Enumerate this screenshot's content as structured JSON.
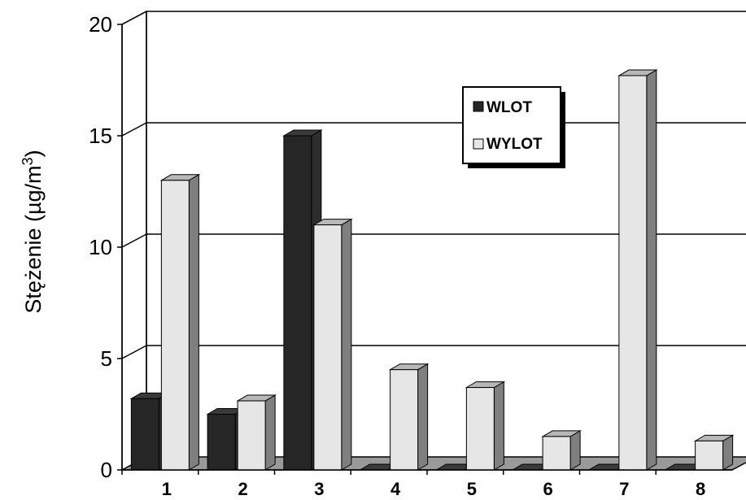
{
  "chart_data": {
    "type": "bar",
    "categories": [
      "1",
      "2",
      "3",
      "4",
      "5",
      "6",
      "7",
      "8"
    ],
    "series": [
      {
        "name": "WLOT",
        "values": [
          3.2,
          2.5,
          15.0,
          0,
          0,
          0,
          0,
          0
        ],
        "color": "#262626"
      },
      {
        "name": "WYLOT",
        "values": [
          13.0,
          3.1,
          11.0,
          4.5,
          3.7,
          1.5,
          17.7,
          1.3
        ],
        "color": "#e6e6e6"
      }
    ],
    "ylabel": "Stężenie (µg/m",
    "ylabel_sup": "3",
    "ylabel_close": ")",
    "ylim": [
      0,
      20
    ],
    "yticks": [
      "0",
      "5",
      "10",
      "15",
      "20"
    ],
    "grid": true,
    "legend_position": "top-right",
    "projection": "3d"
  }
}
